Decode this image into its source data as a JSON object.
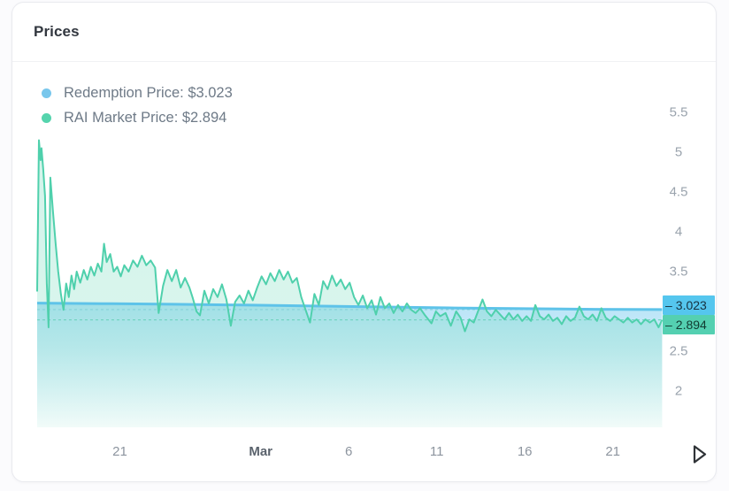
{
  "header": {
    "title": "Prices"
  },
  "legend": {
    "items": [
      {
        "label": "Redemption Price: $3.023",
        "dot_color": "#79c7ec"
      },
      {
        "label": "RAI Market Price: $2.894",
        "dot_color": "#55d4ad"
      }
    ]
  },
  "badge_prefix": "–",
  "controls": {
    "next_arrow_color": "#2f3337"
  },
  "chart_data": {
    "type": "area",
    "title": "Prices",
    "legend_position": "top-left",
    "grid": false,
    "y_axis": {
      "range": [
        1.5,
        6
      ],
      "side": "right",
      "ticks": [
        {
          "label": "5.5",
          "value": 5.5
        },
        {
          "label": "5",
          "value": 5
        },
        {
          "label": "4.5",
          "value": 4.5
        },
        {
          "label": "4",
          "value": 4
        },
        {
          "label": "3.5",
          "value": 3.5
        },
        {
          "label": "2.5",
          "value": 2.5
        },
        {
          "label": "2",
          "value": 2
        }
      ]
    },
    "x_axis": {
      "unit": "days-from-Feb-16",
      "ticks": [
        {
          "label": "21",
          "day": 5,
          "bold": false
        },
        {
          "label": "Mar",
          "day": 13,
          "bold": true
        },
        {
          "label": "6",
          "day": 18,
          "bold": false
        },
        {
          "label": "11",
          "day": 23,
          "bold": false
        },
        {
          "label": "16",
          "day": 28,
          "bold": false
        },
        {
          "label": "21",
          "day": 33,
          "bold": false
        }
      ]
    },
    "series": [
      {
        "name": "Redemption Price",
        "color": "#5ec3e9",
        "fill_color": "#6dc7ee",
        "line_width": 3,
        "last_value": "3.023",
        "badge_bg": "#55c6ee",
        "dotted_ref_color": "#84d2d8",
        "points": [
          [
            0.3,
            3.105
          ],
          [
            4,
            3.098
          ],
          [
            8,
            3.09
          ],
          [
            12,
            3.08
          ],
          [
            16,
            3.068
          ],
          [
            20,
            3.055
          ],
          [
            24,
            3.043
          ],
          [
            28,
            3.034
          ],
          [
            32,
            3.027
          ],
          [
            35.8,
            3.023
          ]
        ]
      },
      {
        "name": "RAI Market Price",
        "color": "#4fd0ac",
        "fill_color": "#55d3af",
        "line_width": 2,
        "last_value": "2.894",
        "badge_bg": "#54d0b1",
        "dotted_ref_color": "#6fd2be",
        "points": [
          [
            0.3,
            3.25
          ],
          [
            0.4,
            5.15
          ],
          [
            0.5,
            4.9
          ],
          [
            0.55,
            5.05
          ],
          [
            0.65,
            4.78
          ],
          [
            0.75,
            4.45
          ],
          [
            0.85,
            3.35
          ],
          [
            0.95,
            2.8
          ],
          [
            1.05,
            4.68
          ],
          [
            1.2,
            4.25
          ],
          [
            1.35,
            3.85
          ],
          [
            1.5,
            3.5
          ],
          [
            1.65,
            3.22
          ],
          [
            1.8,
            3.02
          ],
          [
            1.95,
            3.35
          ],
          [
            2.1,
            3.18
          ],
          [
            2.25,
            3.45
          ],
          [
            2.4,
            3.28
          ],
          [
            2.55,
            3.5
          ],
          [
            2.75,
            3.36
          ],
          [
            2.95,
            3.52
          ],
          [
            3.15,
            3.4
          ],
          [
            3.35,
            3.56
          ],
          [
            3.55,
            3.45
          ],
          [
            3.75,
            3.6
          ],
          [
            3.95,
            3.5
          ],
          [
            4.1,
            3.85
          ],
          [
            4.25,
            3.62
          ],
          [
            4.45,
            3.72
          ],
          [
            4.65,
            3.5
          ],
          [
            4.85,
            3.56
          ],
          [
            5.05,
            3.44
          ],
          [
            5.25,
            3.58
          ],
          [
            5.5,
            3.5
          ],
          [
            5.75,
            3.64
          ],
          [
            6.0,
            3.56
          ],
          [
            6.25,
            3.7
          ],
          [
            6.5,
            3.58
          ],
          [
            6.75,
            3.64
          ],
          [
            7.0,
            3.55
          ],
          [
            7.2,
            2.98
          ],
          [
            7.45,
            3.32
          ],
          [
            7.7,
            3.52
          ],
          [
            7.95,
            3.38
          ],
          [
            8.2,
            3.52
          ],
          [
            8.45,
            3.3
          ],
          [
            8.7,
            3.42
          ],
          [
            8.95,
            3.3
          ],
          [
            9.15,
            3.16
          ],
          [
            9.35,
            3.0
          ],
          [
            9.55,
            2.95
          ],
          [
            9.8,
            3.26
          ],
          [
            10.05,
            3.1
          ],
          [
            10.3,
            3.28
          ],
          [
            10.55,
            3.18
          ],
          [
            10.8,
            3.34
          ],
          [
            11.05,
            3.15
          ],
          [
            11.3,
            2.82
          ],
          [
            11.55,
            3.12
          ],
          [
            11.8,
            3.2
          ],
          [
            12.05,
            3.1
          ],
          [
            12.3,
            3.26
          ],
          [
            12.55,
            3.14
          ],
          [
            12.8,
            3.3
          ],
          [
            13.05,
            3.44
          ],
          [
            13.3,
            3.34
          ],
          [
            13.55,
            3.48
          ],
          [
            13.8,
            3.38
          ],
          [
            14.05,
            3.52
          ],
          [
            14.3,
            3.4
          ],
          [
            14.55,
            3.5
          ],
          [
            14.8,
            3.36
          ],
          [
            15.05,
            3.42
          ],
          [
            15.3,
            3.18
          ],
          [
            15.55,
            3.02
          ],
          [
            15.8,
            2.86
          ],
          [
            16.05,
            3.22
          ],
          [
            16.3,
            3.08
          ],
          [
            16.55,
            3.38
          ],
          [
            16.8,
            3.28
          ],
          [
            17.05,
            3.45
          ],
          [
            17.3,
            3.32
          ],
          [
            17.55,
            3.4
          ],
          [
            17.8,
            3.28
          ],
          [
            18.05,
            3.36
          ],
          [
            18.3,
            3.18
          ],
          [
            18.55,
            3.08
          ],
          [
            18.8,
            3.2
          ],
          [
            19.05,
            3.04
          ],
          [
            19.3,
            3.14
          ],
          [
            19.55,
            2.96
          ],
          [
            19.8,
            3.18
          ],
          [
            20.05,
            3.04
          ],
          [
            20.3,
            3.1
          ],
          [
            20.55,
            2.98
          ],
          [
            20.8,
            3.08
          ],
          [
            21.05,
            3.0
          ],
          [
            21.3,
            3.1
          ],
          [
            21.55,
            3.02
          ],
          [
            21.8,
            2.98
          ],
          [
            22.05,
            3.04
          ],
          [
            22.3,
            2.96
          ],
          [
            22.7,
            2.85
          ],
          [
            22.95,
            3.0
          ],
          [
            23.2,
            2.94
          ],
          [
            23.5,
            2.98
          ],
          [
            23.8,
            2.82
          ],
          [
            24.1,
            3.0
          ],
          [
            24.35,
            2.92
          ],
          [
            24.6,
            2.75
          ],
          [
            24.85,
            2.9
          ],
          [
            25.1,
            2.86
          ],
          [
            25.6,
            3.15
          ],
          [
            25.85,
            3.0
          ],
          [
            26.1,
            2.94
          ],
          [
            26.35,
            3.02
          ],
          [
            26.6,
            2.96
          ],
          [
            26.85,
            2.9
          ],
          [
            27.1,
            2.98
          ],
          [
            27.35,
            2.9
          ],
          [
            27.6,
            2.96
          ],
          [
            27.85,
            2.88
          ],
          [
            28.1,
            2.94
          ],
          [
            28.35,
            2.88
          ],
          [
            28.6,
            3.08
          ],
          [
            28.85,
            2.94
          ],
          [
            29.1,
            2.9
          ],
          [
            29.35,
            2.96
          ],
          [
            29.6,
            2.88
          ],
          [
            29.85,
            2.92
          ],
          [
            30.1,
            2.84
          ],
          [
            30.35,
            2.94
          ],
          [
            30.6,
            2.88
          ],
          [
            30.85,
            2.92
          ],
          [
            31.1,
            3.06
          ],
          [
            31.35,
            2.94
          ],
          [
            31.6,
            2.9
          ],
          [
            31.85,
            2.96
          ],
          [
            32.1,
            2.88
          ],
          [
            32.35,
            3.04
          ],
          [
            32.6,
            2.92
          ],
          [
            32.85,
            2.88
          ],
          [
            33.1,
            2.94
          ],
          [
            33.35,
            2.9
          ],
          [
            33.6,
            2.86
          ],
          [
            33.85,
            2.92
          ],
          [
            34.1,
            2.86
          ],
          [
            34.35,
            2.9
          ],
          [
            34.6,
            2.84
          ],
          [
            34.85,
            2.9
          ],
          [
            35.1,
            2.86
          ],
          [
            35.35,
            2.9
          ],
          [
            35.6,
            2.8
          ],
          [
            35.8,
            2.894
          ]
        ]
      }
    ]
  }
}
